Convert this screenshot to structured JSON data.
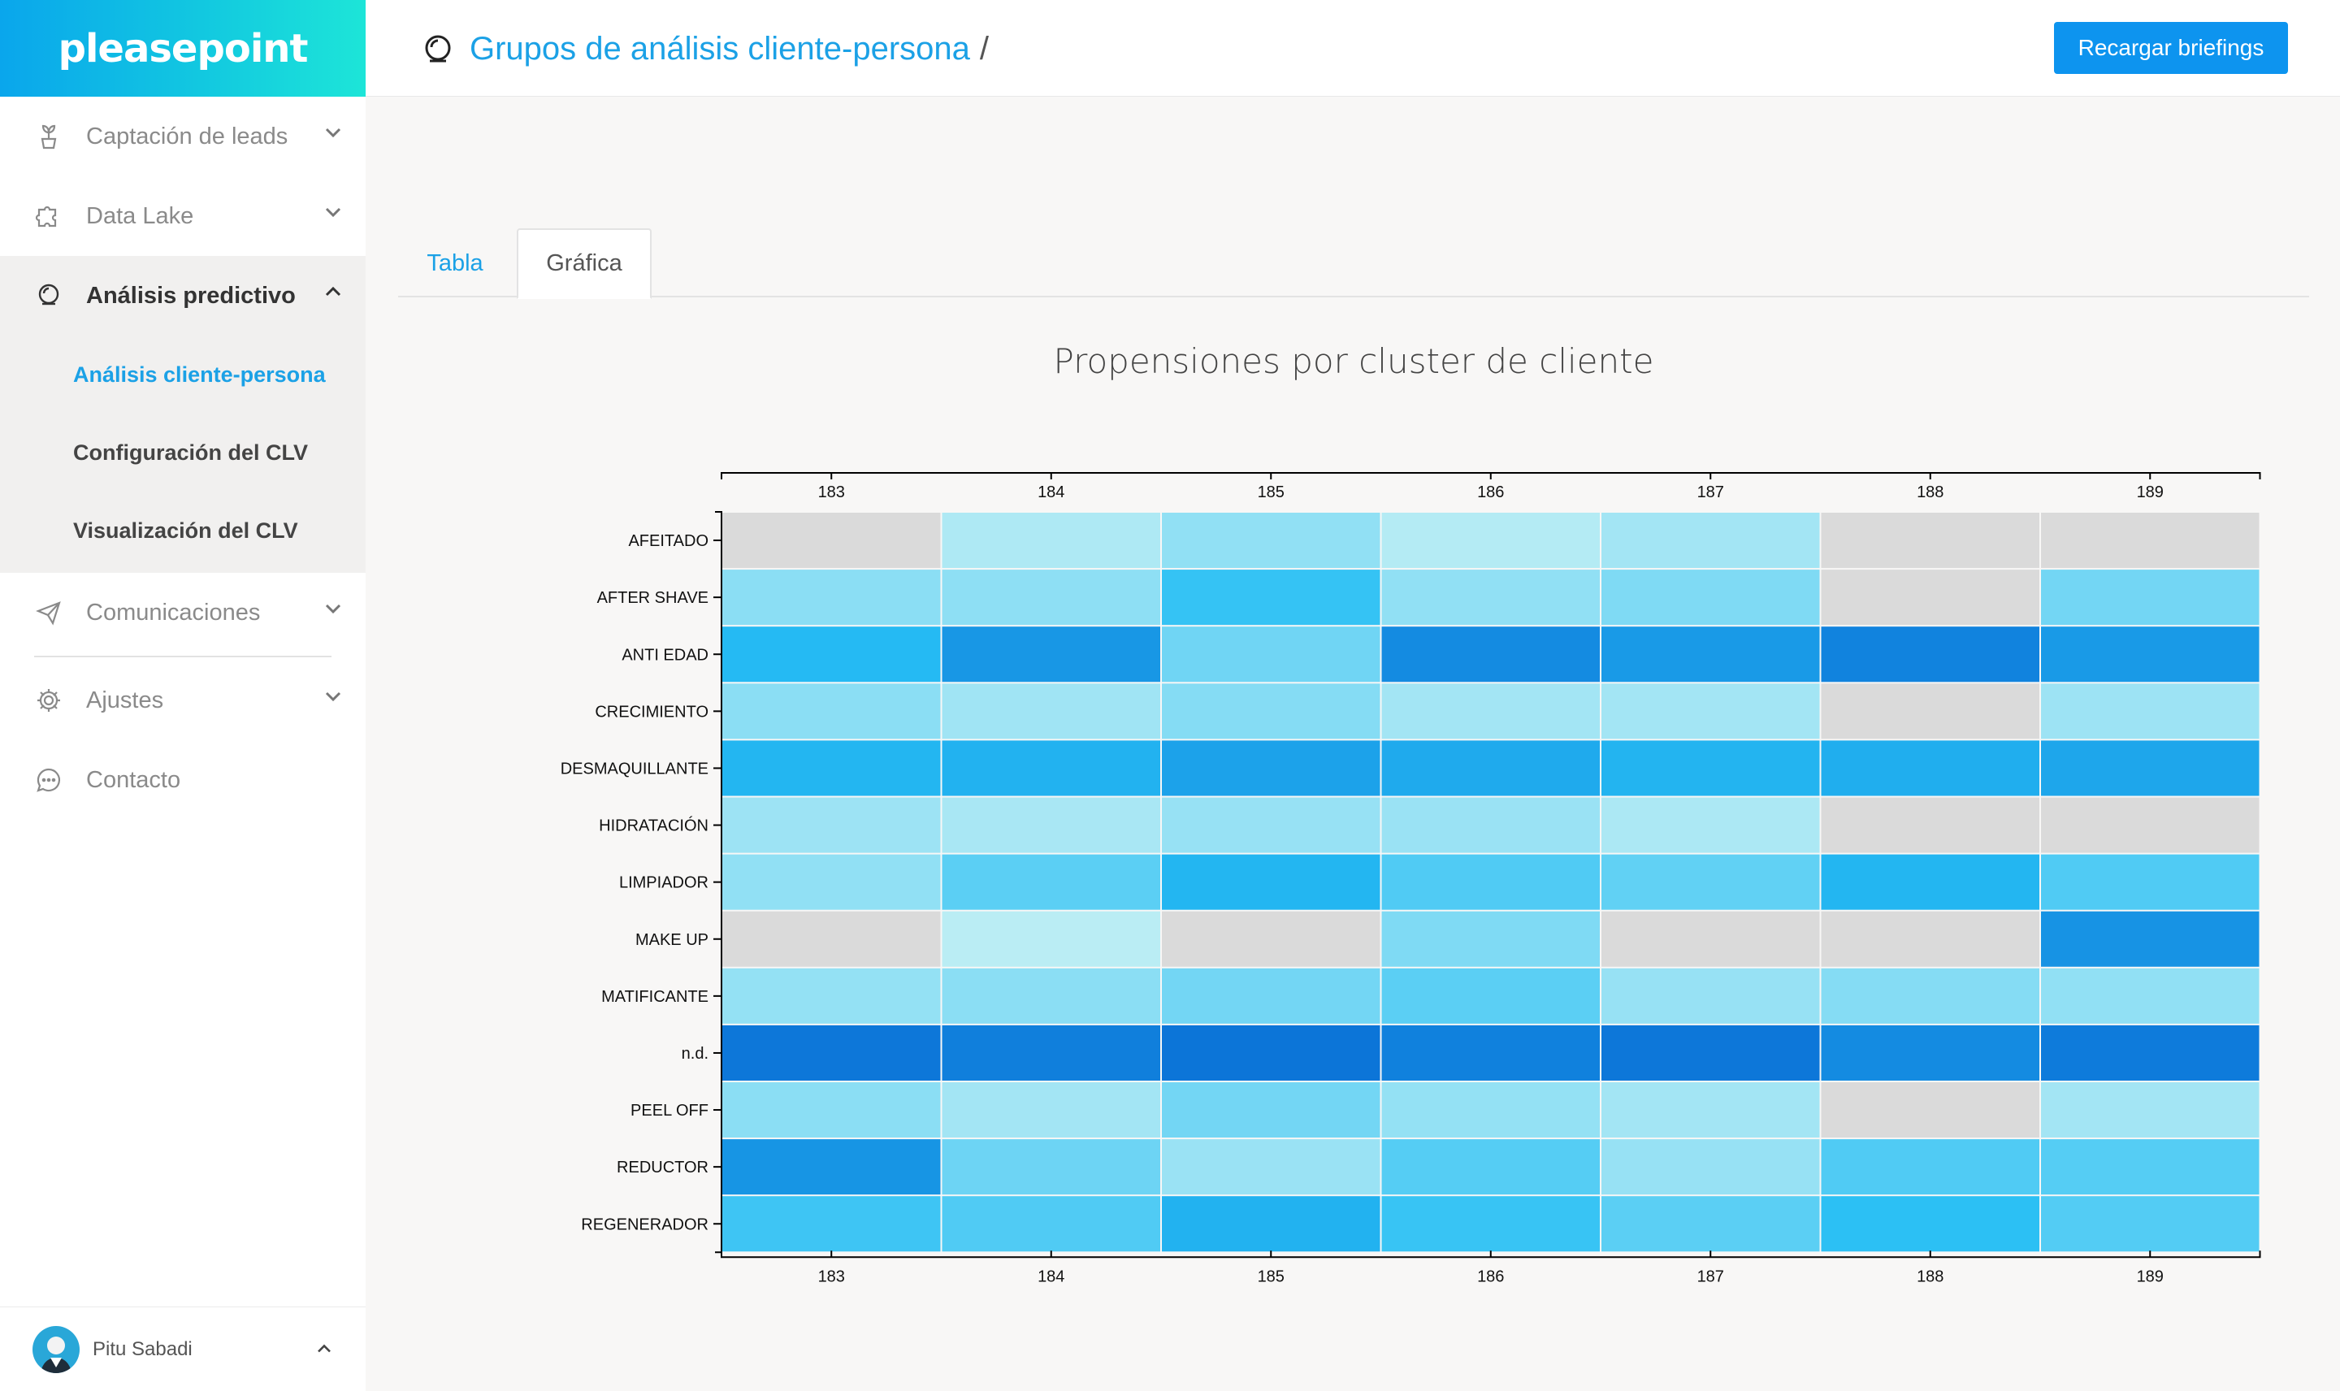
{
  "brand": {
    "logo": "pleasepoint",
    "gradient": [
      "#0aa6ec",
      "#1de5d8"
    ]
  },
  "sidebar": {
    "items": [
      {
        "label": "Captación de leads",
        "icon": "plant-icon",
        "expanded": false
      },
      {
        "label": "Data Lake",
        "icon": "puzzle-icon",
        "expanded": false
      },
      {
        "label": "Análisis predictivo",
        "icon": "crystal-ball-icon",
        "expanded": true,
        "children": [
          {
            "label": "Análisis cliente-persona",
            "current": true
          },
          {
            "label": "Configuración del CLV",
            "current": false
          },
          {
            "label": "Visualización del CLV",
            "current": false
          }
        ]
      },
      {
        "label": "Comunicaciones",
        "icon": "paper-plane-icon",
        "expanded": false
      },
      {
        "label": "Ajustes",
        "icon": "gear-icon",
        "expanded": false
      },
      {
        "label": "Contacto",
        "icon": "chat-bubble-icon",
        "expanded": false
      }
    ],
    "user": {
      "name": "Pitu Sabadi"
    }
  },
  "header": {
    "breadcrumb": "Grupos de análisis cliente-persona",
    "separator": "/",
    "reload_button": "Recargar briefings"
  },
  "tabs": [
    {
      "label": "Tabla",
      "active": false
    },
    {
      "label": "Gráfica",
      "active": true
    }
  ],
  "colors": {
    "accent": "#1ba1e6",
    "button": "#0d94ef",
    "na_cell": "#dadada",
    "scale_low": "#d8f6f4",
    "scale_high": "#0a6fd6"
  },
  "chart_data": {
    "type": "heatmap",
    "title": "Propensiones por cluster de cliente",
    "x": [
      "183",
      "184",
      "185",
      "186",
      "187",
      "188",
      "189"
    ],
    "y": [
      "AFEITADO",
      "AFTER SHAVE",
      "ANTI EDAD",
      "CRECIMIENTO",
      "DESMAQUILLANTE",
      "HIDRATACIÓN",
      "LIMPIADOR",
      "MAKE UP",
      "MATIFICANTE",
      "n.d.",
      "PEEL OFF",
      "REDUCTOR",
      "REGENERADOR"
    ],
    "x_axis_position": "top and bottom",
    "grid": false,
    "values": [
      [
        null,
        0.14,
        0.24,
        0.12,
        0.18,
        null,
        null
      ],
      [
        0.26,
        0.25,
        0.55,
        0.24,
        0.3,
        null,
        0.34
      ],
      [
        0.62,
        0.8,
        0.35,
        0.86,
        0.78,
        0.9,
        0.78
      ],
      [
        0.26,
        0.19,
        0.28,
        0.18,
        0.18,
        null,
        0.2
      ],
      [
        0.64,
        0.66,
        0.74,
        0.7,
        0.65,
        0.68,
        0.72
      ],
      [
        0.2,
        0.16,
        0.22,
        0.21,
        0.15,
        null,
        null
      ],
      [
        0.24,
        0.42,
        0.64,
        0.46,
        0.4,
        0.64,
        0.46
      ],
      [
        null,
        0.1,
        null,
        0.3,
        null,
        null,
        0.82
      ],
      [
        0.23,
        0.26,
        0.34,
        0.42,
        0.22,
        0.28,
        0.24
      ],
      [
        0.96,
        0.92,
        0.97,
        0.91,
        0.96,
        0.86,
        0.94
      ],
      [
        0.26,
        0.18,
        0.34,
        0.23,
        0.18,
        null,
        0.18
      ],
      [
        0.81,
        0.36,
        0.21,
        0.44,
        0.22,
        0.46,
        0.44
      ],
      [
        0.52,
        0.46,
        0.66,
        0.54,
        0.42,
        0.58,
        0.45
      ]
    ]
  }
}
